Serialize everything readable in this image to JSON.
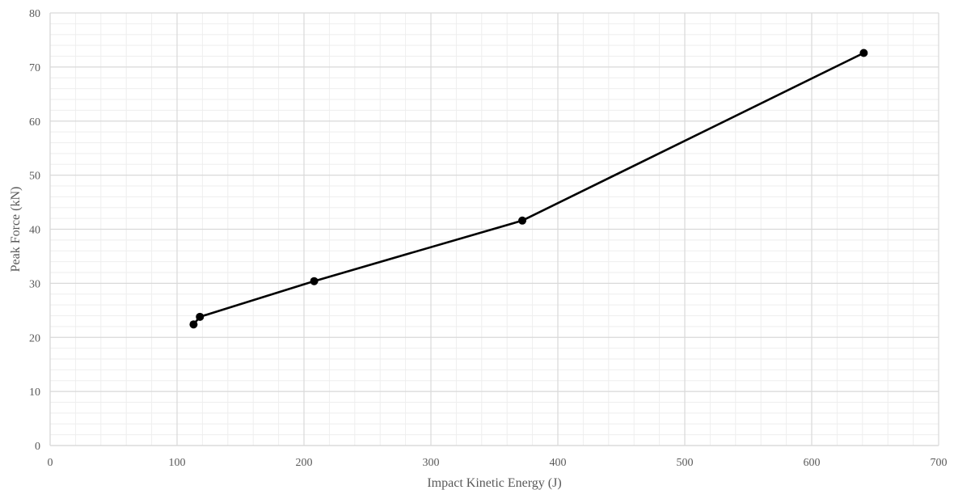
{
  "chart_data": {
    "type": "line",
    "title": "",
    "xlabel": "Impact Kinetic Energy (J)",
    "ylabel": "Peak Force (kN)",
    "xlim": [
      0,
      700
    ],
    "ylim": [
      0,
      80
    ],
    "x_ticks": [
      0,
      100,
      200,
      300,
      400,
      500,
      600,
      700
    ],
    "y_ticks": [
      0,
      10,
      20,
      30,
      40,
      50,
      60,
      70,
      80
    ],
    "grid": true,
    "minor_grid": true,
    "legend": "none",
    "series": [
      {
        "color": "#000000",
        "marker": "circle",
        "x": [
          113,
          118,
          208,
          372,
          641
        ],
        "y": [
          22.4,
          23.8,
          30.4,
          41.6,
          72.6
        ]
      }
    ]
  }
}
